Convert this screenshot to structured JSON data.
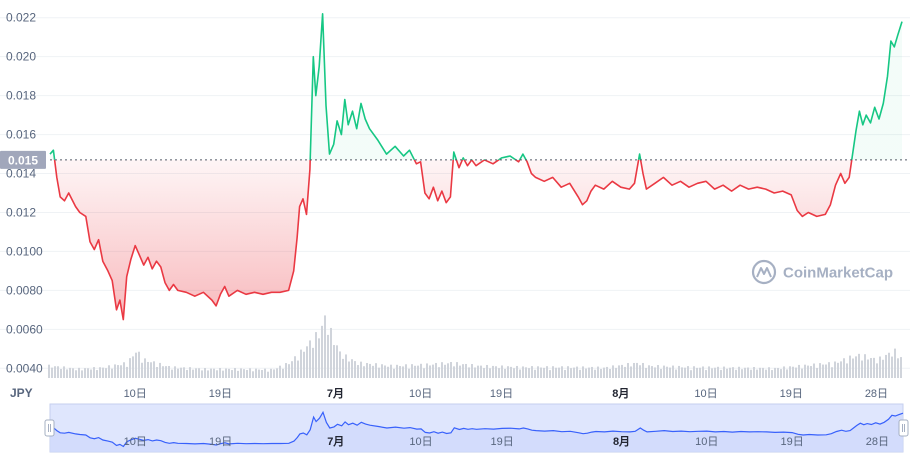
{
  "chart_data": {
    "type": "line",
    "currency_label": "JPY",
    "watermark": "CoinMarketCap",
    "reference_label": "0.015",
    "reference_value": 0.0147,
    "ylim": [
      0.0035,
      0.0225
    ],
    "y_ticks": [
      "0.022",
      "0.020",
      "0.018",
      "0.016",
      "0.014",
      "0.012",
      "0.0100",
      "0.0080",
      "0.0060",
      "0.0040"
    ],
    "y_tick_values": [
      0.022,
      0.02,
      0.018,
      0.016,
      0.014,
      0.012,
      0.01,
      0.008,
      0.006,
      0.004
    ],
    "x_range": [
      0,
      100
    ],
    "x_ticks": [
      {
        "label": "10日",
        "x": 10,
        "bold": false
      },
      {
        "label": "19日",
        "x": 20,
        "bold": false
      },
      {
        "label": "7月",
        "x": 33.5,
        "bold": true
      },
      {
        "label": "10日",
        "x": 43.5,
        "bold": false
      },
      {
        "label": "19日",
        "x": 53,
        "bold": false
      },
      {
        "label": "8月",
        "x": 67,
        "bold": true
      },
      {
        "label": "10日",
        "x": 77,
        "bold": false
      },
      {
        "label": "19日",
        "x": 87,
        "bold": false
      },
      {
        "label": "28日",
        "x": 97,
        "bold": false
      }
    ],
    "price": [
      [
        0,
        0.015
      ],
      [
        0.4,
        0.0152
      ],
      [
        0.8,
        0.0138
      ],
      [
        1.2,
        0.0128
      ],
      [
        1.7,
        0.0126
      ],
      [
        2.2,
        0.013
      ],
      [
        3.0,
        0.0123
      ],
      [
        3.5,
        0.012
      ],
      [
        4.2,
        0.0118
      ],
      [
        4.7,
        0.0105
      ],
      [
        5.2,
        0.0101
      ],
      [
        5.7,
        0.0106
      ],
      [
        6.2,
        0.0095
      ],
      [
        6.8,
        0.009
      ],
      [
        7.3,
        0.0085
      ],
      [
        7.8,
        0.007
      ],
      [
        8.2,
        0.0075
      ],
      [
        8.6,
        0.0065
      ],
      [
        9.0,
        0.0087
      ],
      [
        9.5,
        0.0096
      ],
      [
        10.0,
        0.0103
      ],
      [
        10.5,
        0.0098
      ],
      [
        11.0,
        0.0093
      ],
      [
        11.5,
        0.0097
      ],
      [
        12.0,
        0.0091
      ],
      [
        12.5,
        0.0095
      ],
      [
        13.0,
        0.0092
      ],
      [
        13.5,
        0.0084
      ],
      [
        14.0,
        0.008
      ],
      [
        14.5,
        0.0083
      ],
      [
        15.0,
        0.008
      ],
      [
        16.0,
        0.0079
      ],
      [
        17.0,
        0.0077
      ],
      [
        18.0,
        0.0079
      ],
      [
        19.0,
        0.0075
      ],
      [
        19.5,
        0.0072
      ],
      [
        20.0,
        0.0078
      ],
      [
        20.5,
        0.0082
      ],
      [
        21.0,
        0.0077
      ],
      [
        22.0,
        0.008
      ],
      [
        23.0,
        0.0078
      ],
      [
        24.0,
        0.0079
      ],
      [
        25.0,
        0.0078
      ],
      [
        26.0,
        0.0079
      ],
      [
        27.0,
        0.0079
      ],
      [
        28.0,
        0.008
      ],
      [
        28.6,
        0.009
      ],
      [
        29.0,
        0.0107
      ],
      [
        29.3,
        0.0123
      ],
      [
        29.7,
        0.0127
      ],
      [
        30.1,
        0.0119
      ],
      [
        30.5,
        0.0142
      ],
      [
        30.9,
        0.02
      ],
      [
        31.2,
        0.018
      ],
      [
        31.6,
        0.0195
      ],
      [
        32.0,
        0.0222
      ],
      [
        32.4,
        0.0175
      ],
      [
        32.8,
        0.015
      ],
      [
        33.3,
        0.0155
      ],
      [
        33.7,
        0.0167
      ],
      [
        34.2,
        0.016
      ],
      [
        34.6,
        0.0178
      ],
      [
        35.0,
        0.0165
      ],
      [
        35.5,
        0.0172
      ],
      [
        36.0,
        0.0163
      ],
      [
        36.5,
        0.0176
      ],
      [
        37.0,
        0.0168
      ],
      [
        37.5,
        0.0163
      ],
      [
        38.5,
        0.0157
      ],
      [
        39.5,
        0.015
      ],
      [
        40.5,
        0.0154
      ],
      [
        41.5,
        0.0149
      ],
      [
        42.2,
        0.0152
      ],
      [
        43.0,
        0.0145
      ],
      [
        43.5,
        0.0146
      ],
      [
        44.0,
        0.013
      ],
      [
        44.5,
        0.0127
      ],
      [
        45.0,
        0.0133
      ],
      [
        45.5,
        0.0126
      ],
      [
        46.0,
        0.0131
      ],
      [
        46.5,
        0.0125
      ],
      [
        47.0,
        0.0128
      ],
      [
        47.4,
        0.0151
      ],
      [
        48.0,
        0.0143
      ],
      [
        48.5,
        0.0148
      ],
      [
        49.0,
        0.0144
      ],
      [
        49.5,
        0.0147
      ],
      [
        50.0,
        0.0144
      ],
      [
        51.0,
        0.0147
      ],
      [
        52.0,
        0.0145
      ],
      [
        53.0,
        0.0148
      ],
      [
        54.0,
        0.0149
      ],
      [
        55.0,
        0.0146
      ],
      [
        55.5,
        0.015
      ],
      [
        56.0,
        0.0146
      ],
      [
        56.5,
        0.014
      ],
      [
        57.0,
        0.0138
      ],
      [
        58.0,
        0.0136
      ],
      [
        59.0,
        0.0138
      ],
      [
        60.0,
        0.0133
      ],
      [
        61.0,
        0.0135
      ],
      [
        62.0,
        0.0128
      ],
      [
        62.5,
        0.0124
      ],
      [
        63.0,
        0.0126
      ],
      [
        63.5,
        0.0131
      ],
      [
        64.0,
        0.0134
      ],
      [
        65.0,
        0.0132
      ],
      [
        66.0,
        0.0136
      ],
      [
        67.0,
        0.0133
      ],
      [
        68.0,
        0.0132
      ],
      [
        68.6,
        0.0135
      ],
      [
        69.2,
        0.015
      ],
      [
        69.6,
        0.014
      ],
      [
        70.0,
        0.0132
      ],
      [
        71.0,
        0.0135
      ],
      [
        72.0,
        0.0138
      ],
      [
        73.0,
        0.0134
      ],
      [
        74.0,
        0.0136
      ],
      [
        75.0,
        0.0133
      ],
      [
        76.0,
        0.0135
      ],
      [
        77.0,
        0.0136
      ],
      [
        78.0,
        0.0132
      ],
      [
        79.0,
        0.0134
      ],
      [
        80.0,
        0.0131
      ],
      [
        81.0,
        0.0134
      ],
      [
        82.0,
        0.0132
      ],
      [
        83.0,
        0.0133
      ],
      [
        84.0,
        0.0132
      ],
      [
        85.0,
        0.013
      ],
      [
        86.0,
        0.0131
      ],
      [
        87.0,
        0.0129
      ],
      [
        87.7,
        0.0121
      ],
      [
        88.3,
        0.0118
      ],
      [
        89.0,
        0.012
      ],
      [
        90.0,
        0.0118
      ],
      [
        91.0,
        0.0119
      ],
      [
        91.6,
        0.0124
      ],
      [
        92.2,
        0.0134
      ],
      [
        92.8,
        0.014
      ],
      [
        93.3,
        0.0135
      ],
      [
        93.8,
        0.0138
      ],
      [
        94.2,
        0.015
      ],
      [
        94.6,
        0.0162
      ],
      [
        95.0,
        0.0172
      ],
      [
        95.4,
        0.0165
      ],
      [
        95.8,
        0.017
      ],
      [
        96.3,
        0.0166
      ],
      [
        96.8,
        0.0174
      ],
      [
        97.3,
        0.0168
      ],
      [
        97.8,
        0.0176
      ],
      [
        98.3,
        0.019
      ],
      [
        98.7,
        0.0208
      ],
      [
        99.1,
        0.0205
      ],
      [
        99.5,
        0.0211
      ],
      [
        100.0,
        0.0218
      ]
    ],
    "volume": [
      [
        0,
        0.2
      ],
      [
        3,
        0.15
      ],
      [
        6,
        0.17
      ],
      [
        9,
        0.25
      ],
      [
        10,
        0.45
      ],
      [
        11,
        0.3
      ],
      [
        14,
        0.18
      ],
      [
        18,
        0.15
      ],
      [
        22,
        0.15
      ],
      [
        26,
        0.14
      ],
      [
        28,
        0.25
      ],
      [
        29.5,
        0.45
      ],
      [
        30.5,
        0.6
      ],
      [
        31.5,
        0.75
      ],
      [
        32.2,
        1.0
      ],
      [
        33,
        0.7
      ],
      [
        34,
        0.4
      ],
      [
        36,
        0.25
      ],
      [
        40,
        0.2
      ],
      [
        44,
        0.22
      ],
      [
        47,
        0.25
      ],
      [
        50,
        0.2
      ],
      [
        55,
        0.18
      ],
      [
        60,
        0.18
      ],
      [
        65,
        0.17
      ],
      [
        69,
        0.25
      ],
      [
        70,
        0.2
      ],
      [
        75,
        0.18
      ],
      [
        80,
        0.17
      ],
      [
        85,
        0.16
      ],
      [
        88,
        0.2
      ],
      [
        92,
        0.25
      ],
      [
        94,
        0.35
      ],
      [
        95,
        0.38
      ],
      [
        97,
        0.3
      ],
      [
        99,
        0.45
      ],
      [
        100,
        0.3
      ]
    ],
    "overview_labels": [
      "10日",
      "19日",
      "7月",
      "10日",
      "19日",
      "8月",
      "10日",
      "19日",
      "28日"
    ],
    "colors": {
      "up": "#16c784",
      "down": "#ea3943",
      "overview_line": "#3861fb",
      "overview_fill": "#dfe6fd",
      "grid": "#eff2f5",
      "reference": "#555b67",
      "tag_bg": "#a1a7bb",
      "volume": "#d0d4db"
    }
  }
}
